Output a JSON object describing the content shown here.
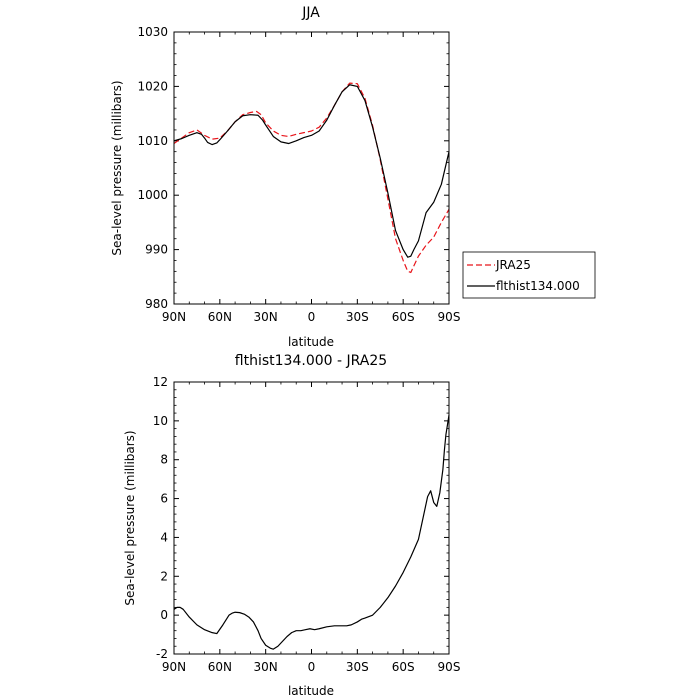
{
  "chart_data": [
    {
      "type": "line",
      "title": "JJA",
      "xlabel": "latitude",
      "ylabel": "Sea-level pressure (millibars)",
      "xlim": [
        90,
        -90
      ],
      "ylim": [
        980,
        1030
      ],
      "x_ticks": [
        {
          "value": 90,
          "label": "90N"
        },
        {
          "value": 60,
          "label": "60N"
        },
        {
          "value": 30,
          "label": "30N"
        },
        {
          "value": 0,
          "label": "0"
        },
        {
          "value": -30,
          "label": "30S"
        },
        {
          "value": -60,
          "label": "60S"
        },
        {
          "value": -90,
          "label": "90S"
        }
      ],
      "y_ticks": [
        980,
        990,
        1000,
        1010,
        1020,
        1030
      ],
      "grid": false,
      "legend_position": "right",
      "series": [
        {
          "name": "JRA25",
          "color": "#e8141a",
          "dash": "dashed",
          "x": [
            90,
            85,
            80,
            75,
            70,
            65,
            60,
            55,
            50,
            45,
            40,
            36,
            33,
            30,
            25,
            20,
            15,
            10,
            5,
            0,
            -5,
            -10,
            -15,
            -20,
            -25,
            -30,
            -35,
            -40,
            -45,
            -50,
            -55,
            -60,
            -63,
            -65,
            -67,
            -70,
            -75,
            -80,
            -85,
            -90
          ],
          "y": [
            1009.5,
            1010.5,
            1011.5,
            1012.0,
            1011.0,
            1010.3,
            1010.5,
            1011.8,
            1013.5,
            1014.8,
            1015.2,
            1015.4,
            1014.8,
            1013.3,
            1011.8,
            1011.0,
            1010.8,
            1011.2,
            1011.5,
            1011.8,
            1012.5,
            1014.2,
            1016.5,
            1019.0,
            1020.6,
            1020.5,
            1017.8,
            1012.8,
            1006.5,
            999.3,
            992.0,
            988.0,
            986.0,
            985.8,
            987.0,
            988.8,
            990.8,
            992.3,
            995.0,
            997.4
          ]
        },
        {
          "name": "flthist134.000",
          "color": "#000000",
          "dash": "solid",
          "x": [
            90,
            85,
            80,
            75,
            72,
            70,
            68,
            65,
            62,
            60,
            55,
            50,
            45,
            40,
            35,
            32,
            30,
            25,
            20,
            15,
            10,
            5,
            0,
            -5,
            -10,
            -15,
            -20,
            -25,
            -30,
            -35,
            -40,
            -45,
            -50,
            -55,
            -60,
            -63,
            -65,
            -67,
            -70,
            -75,
            -80,
            -85,
            -90
          ],
          "y": [
            1010.0,
            1010.4,
            1011.0,
            1011.5,
            1011.2,
            1010.5,
            1009.7,
            1009.3,
            1009.6,
            1010.2,
            1011.8,
            1013.5,
            1014.6,
            1014.8,
            1014.7,
            1013.8,
            1012.9,
            1010.8,
            1009.8,
            1009.5,
            1010.0,
            1010.6,
            1011.0,
            1011.8,
            1013.8,
            1016.5,
            1019.0,
            1020.3,
            1020.0,
            1017.4,
            1012.5,
            1006.8,
            1000.4,
            993.5,
            990.0,
            988.6,
            988.8,
            990.0,
            991.6,
            996.8,
            998.7,
            1002.0,
            1008.0
          ]
        }
      ]
    },
    {
      "type": "line",
      "title": "flthist134.000 - JRA25",
      "xlabel": "latitude",
      "ylabel": "Sea-level pressure (millibars)",
      "xlim": [
        90,
        -90
      ],
      "ylim": [
        -2,
        12
      ],
      "x_ticks": [
        {
          "value": 90,
          "label": "90N"
        },
        {
          "value": 60,
          "label": "60N"
        },
        {
          "value": 30,
          "label": "30N"
        },
        {
          "value": 0,
          "label": "0"
        },
        {
          "value": -30,
          "label": "30S"
        },
        {
          "value": -60,
          "label": "60S"
        },
        {
          "value": -90,
          "label": "90S"
        }
      ],
      "y_ticks": [
        -2,
        0,
        2,
        4,
        6,
        8,
        10,
        12
      ],
      "grid": false,
      "series": [
        {
          "color": "#000000",
          "dash": "solid",
          "x": [
            90,
            88,
            86,
            84,
            80,
            75,
            70,
            65,
            62,
            58,
            54,
            52,
            50,
            47,
            44,
            41,
            38,
            35,
            33,
            30,
            27,
            25,
            22,
            19,
            16,
            13,
            10,
            7,
            4,
            1,
            -2,
            -5,
            -10,
            -15,
            -20,
            -23,
            -26,
            -30,
            -33,
            -35,
            -40,
            -45,
            -50,
            -55,
            -60,
            -65,
            -70,
            -73,
            -76,
            -78,
            -80,
            -82,
            -84,
            -86,
            -87,
            -88,
            -89,
            -90
          ],
          "y": [
            0.3,
            0.4,
            0.4,
            0.3,
            -0.1,
            -0.5,
            -0.75,
            -0.9,
            -0.95,
            -0.5,
            0.0,
            0.1,
            0.15,
            0.13,
            0.05,
            -0.1,
            -0.35,
            -0.8,
            -1.2,
            -1.55,
            -1.7,
            -1.75,
            -1.6,
            -1.35,
            -1.1,
            -0.9,
            -0.8,
            -0.8,
            -0.75,
            -0.7,
            -0.75,
            -0.7,
            -0.6,
            -0.55,
            -0.55,
            -0.55,
            -0.5,
            -0.35,
            -0.2,
            -0.15,
            0.0,
            0.4,
            0.9,
            1.5,
            2.2,
            3.0,
            3.9,
            5.0,
            6.1,
            6.4,
            5.8,
            5.6,
            6.3,
            7.5,
            8.5,
            9.3,
            9.8,
            10.3
          ]
        }
      ]
    }
  ]
}
